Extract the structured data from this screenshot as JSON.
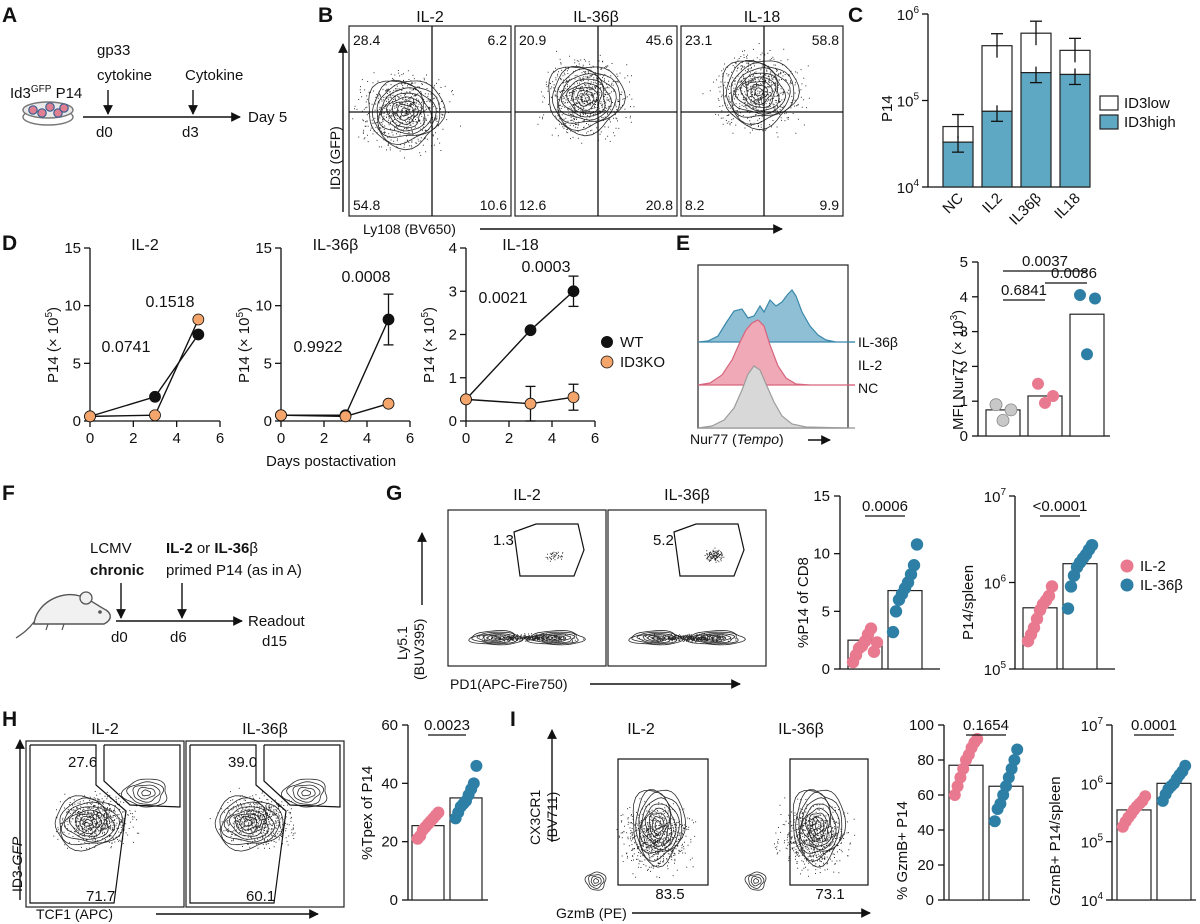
{
  "colors": {
    "teal": "#5fa8c4",
    "blue_dot": "#2e7fa6",
    "pink": "#e8798f",
    "orange": "#f3a56b",
    "grey": "#c8c8c8",
    "black": "#111111"
  },
  "panel_labels": {
    "A": "A",
    "B": "B",
    "C": "C",
    "D": "D",
    "E": "E",
    "F": "F",
    "G": "G",
    "H": "H",
    "I": "I"
  },
  "panelA": {
    "cell_label": "Id3",
    "cell_sup": "GFP",
    "cell_label2": " P14",
    "arrow1_line1": "gp33",
    "arrow1_line2": "cytokine",
    "arrow2": "Cytokine",
    "d0": "d0",
    "d3": "d3",
    "end": "Day 5"
  },
  "panelB": {
    "ylabel": "ID3 (GFP)",
    "xlabel": "Ly108 (BV650)",
    "plots": [
      {
        "title": "IL-2",
        "q": [
          "28.4",
          "6.2",
          "54.8",
          "10.6"
        ]
      },
      {
        "title": "IL-36β",
        "q": [
          "20.9",
          "45.6",
          "12.6",
          "20.8"
        ]
      },
      {
        "title": "IL-18",
        "q": [
          "23.1",
          "58.8",
          "8.2",
          "9.9"
        ]
      }
    ]
  },
  "panelC": {
    "ylabel": "P14",
    "yticks": [
      "10",
      "10",
      "10"
    ],
    "ytick_exp": [
      "4",
      "5",
      "6"
    ],
    "categories": [
      "NC",
      "IL2",
      "IL36β",
      "IL18"
    ],
    "legend": [
      "ID3low",
      "ID3high"
    ]
  },
  "panelD": {
    "ylabel": "P14 (× 10",
    "ylabel_exp": "5",
    "ylabel_end": ")",
    "xlabel": "Days postactivation",
    "legend": [
      "WT",
      "ID3KO"
    ],
    "xticks": [
      "0",
      "2",
      "4",
      "6"
    ],
    "plots": [
      {
        "title": "IL-2",
        "yticks": [
          "0",
          "5",
          "10",
          "15"
        ],
        "pvals": [
          "0.0741",
          "0.1518"
        ]
      },
      {
        "title": "IL-36β",
        "yticks": [
          "0",
          "5",
          "10",
          "15"
        ],
        "pvals": [
          "0.9922",
          "0.0008"
        ]
      },
      {
        "title": "IL-18",
        "yticks": [
          "0",
          "1",
          "2",
          "3",
          "4"
        ],
        "pvals": [
          "0.0021",
          "0.0003"
        ]
      }
    ]
  },
  "panelE": {
    "hist_xlabel": "Nur77 (",
    "hist_xlabel_it": "Tempo",
    "hist_xlabel_end": ")",
    "hist_legend": [
      "IL-36β",
      "IL-2",
      "NC"
    ],
    "ylabel": "MFI Nur77 (× 10",
    "ylabel_exp": "3",
    "ylabel_end": ")",
    "yticks": [
      "0",
      "1",
      "2",
      "3",
      "4",
      "5"
    ],
    "pvals": [
      "0.0037",
      "0.0086",
      "0.6841"
    ]
  },
  "panelF": {
    "lcmv": "LCMV",
    "chronic": "chronic",
    "il2": "IL-2",
    "or": " or ",
    "il36": "IL-36",
    "beta": "β",
    "primed": "primed P14 (as in A)",
    "d0": "d0",
    "d6": "d6",
    "readout": "Readout",
    "d15": "d15"
  },
  "panelG": {
    "ylabel1": "Ly5.1",
    "ylabel2": "(BUV395)",
    "xlabel": "PD1(APC-Fire750)",
    "plots": [
      {
        "title": "IL-2",
        "gate": "1.3"
      },
      {
        "title": "IL-36β",
        "gate": "5.2"
      }
    ],
    "bar1": {
      "ylabel": "%P14 of CD8",
      "yticks": [
        "0",
        "5",
        "10",
        "15"
      ],
      "pval": "0.0006"
    },
    "bar2": {
      "ylabel": "P14/spleen",
      "yticks": [
        "10",
        "10",
        "10"
      ],
      "ytick_exp": [
        "5",
        "6",
        "7"
      ],
      "pval": "<0.0001"
    },
    "legend": [
      "IL-2",
      "IL-36β"
    ]
  },
  "panelH": {
    "ylabel": "ID3-",
    "ylabel_it": "GFP",
    "xlabel": "TCF1 (APC)",
    "plots": [
      {
        "title": "IL-2",
        "top": "27.6",
        "bottom": "71.7"
      },
      {
        "title": "IL-36β",
        "top": "39.0",
        "bottom": "60.1"
      }
    ],
    "bar": {
      "ylabel": "%Tpex of P14",
      "yticks": [
        "0",
        "20",
        "40",
        "60"
      ],
      "pval": "0.0023"
    }
  },
  "panelI": {
    "ylabel1": "CX3CR1",
    "ylabel2": "(BV711)",
    "xlabel": "GzmB (PE)",
    "plots": [
      {
        "title": "IL-2",
        "gate": "83.5"
      },
      {
        "title": "IL-36β",
        "gate": "73.1"
      }
    ],
    "bar1": {
      "ylabel": "% GzmB+ P14",
      "yticks": [
        "0",
        "20",
        "40",
        "60",
        "80",
        "100"
      ],
      "pval": "0.1654"
    },
    "bar2": {
      "ylabel": "GzmB+ P14/spleen",
      "yticks": [
        "10",
        "10",
        "10",
        "10"
      ],
      "ytick_exp": [
        "4",
        "5",
        "6",
        "7"
      ],
      "pval": "0.0001"
    }
  },
  "chart_data": [
    {
      "type": "bar",
      "panel": "C",
      "ylabel": "P14",
      "log_scale": true,
      "ylim": [
        10000,
        1000000
      ],
      "categories": [
        "NC",
        "IL2",
        "IL36β",
        "IL18"
      ],
      "series": [
        {
          "name": "ID3high",
          "values": [
            33000,
            75000,
            210000,
            200000
          ]
        },
        {
          "name": "ID3low",
          "values": [
            50000,
            430000,
            600000,
            380000
          ]
        }
      ]
    },
    {
      "type": "line",
      "panel": "D",
      "title": "IL-2",
      "xlim": [
        0,
        6
      ],
      "ylim": [
        0,
        15
      ],
      "series": [
        {
          "name": "WT",
          "x": [
            0,
            3,
            5
          ],
          "y": [
            0.4,
            2.1,
            7.5
          ]
        },
        {
          "name": "ID3KO",
          "x": [
            0,
            3,
            5
          ],
          "y": [
            0.4,
            0.5,
            8.8
          ]
        }
      ],
      "annotations": [
        "0.0741",
        "0.1518"
      ]
    },
    {
      "type": "line",
      "panel": "D",
      "title": "IL-36β",
      "xlim": [
        0,
        6
      ],
      "ylim": [
        0,
        15
      ],
      "series": [
        {
          "name": "WT",
          "x": [
            0,
            3,
            5
          ],
          "y": [
            0.5,
            0.5,
            8.8
          ],
          "err": [
            0,
            0,
            2.2
          ]
        },
        {
          "name": "ID3KO",
          "x": [
            0,
            3,
            5
          ],
          "y": [
            0.5,
            0.4,
            1.5
          ]
        }
      ],
      "annotations": [
        "0.9922",
        "0.0008"
      ]
    },
    {
      "type": "line",
      "panel": "D",
      "title": "IL-18",
      "xlim": [
        0,
        6
      ],
      "ylim": [
        0,
        4
      ],
      "series": [
        {
          "name": "WT",
          "x": [
            0,
            3,
            5
          ],
          "y": [
            0.5,
            2.1,
            3.0
          ],
          "err": [
            0,
            0.05,
            0.35
          ]
        },
        {
          "name": "ID3KO",
          "x": [
            0,
            3,
            5
          ],
          "y": [
            0.5,
            0.4,
            0.55
          ],
          "err": [
            0,
            0.4,
            0.3
          ]
        }
      ],
      "annotations": [
        "0.0021",
        "0.0003"
      ]
    },
    {
      "type": "bar",
      "panel": "E",
      "ylim": [
        0,
        5
      ],
      "categories": [
        "NC",
        "IL-2",
        "IL-36β"
      ],
      "values": [
        0.75,
        1.15,
        3.5
      ],
      "points": [
        [
          0.9,
          0.75,
          0.45
        ],
        [
          1.5,
          1.15,
          0.95
        ],
        [
          4.05,
          3.95,
          2.35
        ]
      ],
      "point_colors": [
        "#c8c8c8",
        "#e8798f",
        "#2e7fa6"
      ]
    },
    {
      "type": "bar",
      "panel": "G",
      "ylabel": "%P14 of CD8",
      "ylim": [
        0,
        15
      ],
      "categories": [
        "IL-2",
        "IL-36β"
      ],
      "values": [
        2.5,
        6.8
      ],
      "points": [
        [
          0.6,
          1.2,
          1.8,
          2.0,
          2.4,
          3.0,
          3.5,
          1.5,
          2.3
        ],
        [
          3.2,
          5.0,
          6.0,
          6.5,
          7.0,
          7.5,
          8.2,
          9.0,
          10.8
        ]
      ],
      "point_colors": [
        "#e8798f",
        "#2e7fa6"
      ]
    },
    {
      "type": "bar",
      "panel": "G",
      "ylabel": "P14/spleen",
      "log_scale": true,
      "ylim": [
        100000,
        10000000
      ],
      "categories": [
        "IL-2",
        "IL-36β"
      ],
      "values": [
        510000,
        1650000
      ],
      "points": [
        [
          210000,
          250000,
          300000,
          380000,
          480000,
          560000,
          620000,
          700000,
          900000
        ],
        [
          500000,
          900000,
          1200000,
          1500000,
          1700000,
          1900000,
          2100000,
          2400000,
          2700000
        ]
      ],
      "point_colors": [
        "#e8798f",
        "#2e7fa6"
      ]
    },
    {
      "type": "bar",
      "panel": "H",
      "ylabel": "%Tpex of P14",
      "ylim": [
        0,
        60
      ],
      "categories": [
        "IL-2",
        "IL-36β"
      ],
      "values": [
        25.5,
        35
      ],
      "points": [
        [
          21,
          22,
          24,
          25,
          26,
          27,
          28,
          29,
          30
        ],
        [
          28,
          30,
          32,
          33,
          34,
          36,
          38,
          40,
          46
        ]
      ],
      "point_colors": [
        "#e8798f",
        "#2e7fa6"
      ]
    },
    {
      "type": "bar",
      "panel": "I",
      "ylabel": "% GzmB+ P14",
      "ylim": [
        0,
        100
      ],
      "categories": [
        "IL-2",
        "IL-36β"
      ],
      "values": [
        77,
        65
      ],
      "points": [
        [
          60,
          65,
          70,
          75,
          80,
          83,
          87,
          90,
          92
        ],
        [
          45,
          52,
          55,
          60,
          65,
          70,
          75,
          80,
          86
        ]
      ],
      "point_colors": [
        "#e8798f",
        "#2e7fa6"
      ]
    },
    {
      "type": "bar",
      "panel": "I",
      "ylabel": "GzmB+ P14/spleen",
      "log_scale": true,
      "ylim": [
        10000,
        10000000
      ],
      "categories": [
        "IL-2",
        "IL-36β"
      ],
      "values": [
        350000,
        1000000
      ],
      "points": [
        [
          180000,
          220000,
          260000,
          300000,
          350000,
          400000,
          450000,
          500000,
          600000
        ],
        [
          500000,
          650000,
          800000,
          900000,
          1000000,
          1200000,
          1400000,
          1600000,
          2000000
        ]
      ],
      "point_colors": [
        "#e8798f",
        "#2e7fa6"
      ]
    }
  ]
}
